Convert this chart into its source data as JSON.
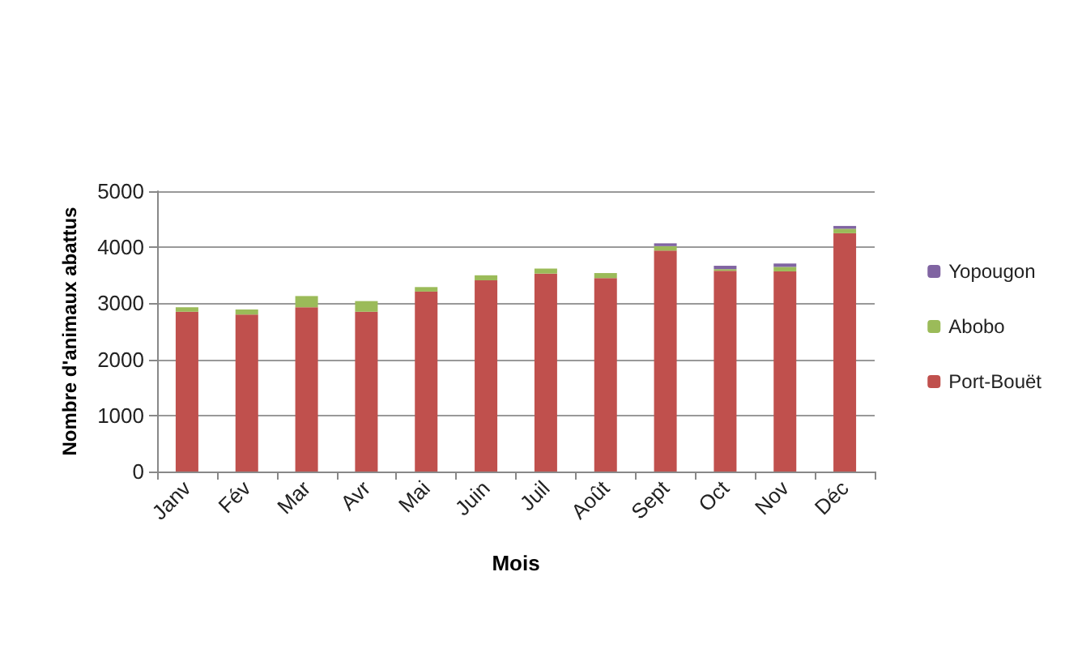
{
  "chart_data": {
    "type": "bar",
    "stacked": true,
    "xlabel": "Mois",
    "ylabel": "Nombre d'animaux abattus",
    "categories": [
      "Janv",
      "Fév",
      "Mar",
      "Avr",
      "Mai",
      "Juin",
      "Juil",
      "Août",
      "Sept",
      "Oct",
      "Nov",
      "Déc"
    ],
    "series": [
      {
        "name": "Port-Bouët",
        "color": "#c0504d",
        "values": [
          2850,
          2800,
          2930,
          2850,
          3210,
          3410,
          3530,
          3450,
          3940,
          3580,
          3570,
          4250
        ]
      },
      {
        "name": "Abobo",
        "color": "#9bbb59",
        "values": [
          80,
          90,
          200,
          190,
          80,
          90,
          90,
          90,
          80,
          30,
          80,
          80
        ]
      },
      {
        "name": "Yopougon",
        "color": "#8064a2",
        "values": [
          0,
          0,
          0,
          0,
          0,
          0,
          0,
          0,
          50,
          60,
          60,
          50
        ]
      }
    ],
    "ylim": [
      0,
      5000
    ],
    "yticks": [
      0,
      1000,
      2000,
      3000,
      4000,
      5000
    ],
    "grid": "y",
    "legend": "right"
  }
}
